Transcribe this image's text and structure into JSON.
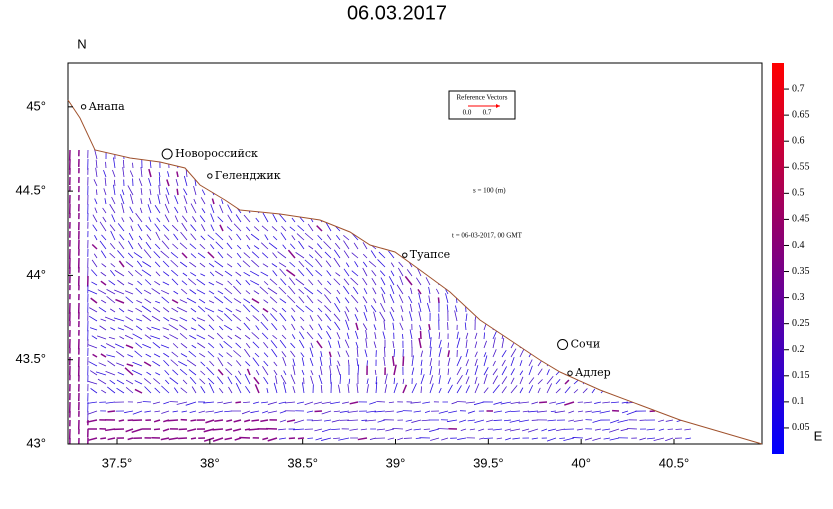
{
  "chart_data": {
    "type": "map",
    "title": "06.03.2017",
    "ylabel": "N",
    "xlabel": "E",
    "xlim": [
      37.236,
      40.974
    ],
    "ylim": [
      43,
      45.26
    ],
    "xticks": [
      {
        "value": 37.5,
        "label": "37.5°"
      },
      {
        "value": 38,
        "label": "38°"
      },
      {
        "value": 38.5,
        "label": "38.5°"
      },
      {
        "value": 39,
        "label": "39°"
      },
      {
        "value": 39.5,
        "label": "39.5°"
      },
      {
        "value": 40,
        "label": "40°"
      },
      {
        "value": 40.5,
        "label": "40.5°"
      }
    ],
    "yticks": [
      {
        "value": 43,
        "label": "43°"
      },
      {
        "value": 43.5,
        "label": "43.5°"
      },
      {
        "value": 44,
        "label": "44°"
      },
      {
        "value": 44.5,
        "label": "44.5°"
      },
      {
        "value": 45,
        "label": "45°"
      }
    ],
    "clim": [
      0,
      0.75
    ],
    "cticks": [
      0.05,
      0.1,
      0.15,
      0.2,
      0.25,
      0.3,
      0.35,
      0.4,
      0.45,
      0.5,
      0.55,
      0.6,
      0.65,
      0.7
    ],
    "cities": [
      {
        "name": "Анапа",
        "lon": 37.32,
        "lat": 45.0
      },
      {
        "name": "Новороссийск",
        "lon": 37.77,
        "lat": 44.72,
        "major": true
      },
      {
        "name": "Геленджик",
        "lon": 38.0,
        "lat": 44.59
      },
      {
        "name": "Туапсе",
        "lon": 39.05,
        "lat": 44.12
      },
      {
        "name": "Сочи",
        "lon": 39.9,
        "lat": 43.59,
        "major": true
      },
      {
        "name": "Адлер",
        "lon": 39.94,
        "lat": 43.42
      }
    ],
    "reference": {
      "title": "Reference Vectors",
      "min": "0.0",
      "max": "0.7"
    },
    "annotations": [
      "s = 100 (m)",
      "t = 06-03-2017, 00 GMT"
    ]
  }
}
